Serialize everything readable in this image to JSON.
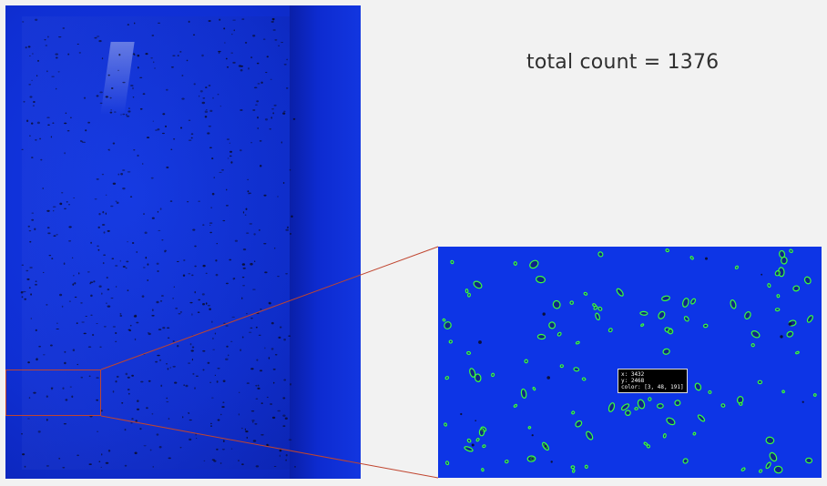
{
  "result": {
    "total_count_text": "total count = 1376"
  },
  "tooltip": {
    "x_text": "x: 3432",
    "y_text": "y: 2468",
    "color_text": "color: [3, 48, 191]"
  },
  "colors": {
    "tray_blue": "#0f2fd3",
    "roi_outline": "#c0452f",
    "detection_contour": "#3cff3c",
    "zoom_background": "#0d35e6"
  }
}
